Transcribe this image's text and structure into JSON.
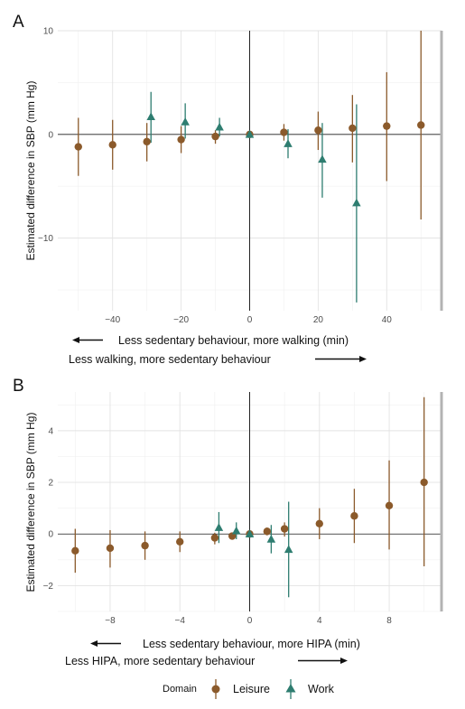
{
  "chart_data": [
    {
      "panel": "A",
      "type": "scatter",
      "ylabel": "Estimated difference in SBP (mm Hg)",
      "xlim": [
        -56,
        56
      ],
      "ylim": [
        -17,
        10
      ],
      "x_ticks": [
        -40,
        -20,
        0,
        20,
        40
      ],
      "y_ticks": [
        -10,
        0,
        10
      ],
      "x_tick_labels": [
        "−40",
        "−20",
        "0",
        "20",
        "40"
      ],
      "y_tick_labels": [
        "−10",
        "0",
        "10"
      ],
      "grid": true,
      "captions": [
        "Less sedentary behaviour, more walking (min)",
        "Less walking, more sedentary behaviour"
      ],
      "series": [
        {
          "name": "Leisure",
          "color": "#8B5A2B",
          "marker": "circle",
          "points": [
            {
              "x": -50,
              "y": -1.2,
              "lo": -4.0,
              "hi": 1.6
            },
            {
              "x": -40,
              "y": -1.0,
              "lo": -3.4,
              "hi": 1.4
            },
            {
              "x": -30,
              "y": -0.7,
              "lo": -2.6,
              "hi": 1.1
            },
            {
              "x": -20,
              "y": -0.5,
              "lo": -1.8,
              "hi": 0.8
            },
            {
              "x": -10,
              "y": -0.2,
              "lo": -0.9,
              "hi": 0.4
            },
            {
              "x": 0,
              "y": 0.0,
              "lo": 0.0,
              "hi": 0.0
            },
            {
              "x": 10,
              "y": 0.2,
              "lo": -0.6,
              "hi": 1.0
            },
            {
              "x": 20,
              "y": 0.4,
              "lo": -1.5,
              "hi": 2.2
            },
            {
              "x": 30,
              "y": 0.6,
              "lo": -2.7,
              "hi": 3.8
            },
            {
              "x": 40,
              "y": 0.8,
              "lo": -4.5,
              "hi": 6.0
            },
            {
              "x": 50,
              "y": 0.9,
              "lo": -8.2,
              "hi": 10.0
            }
          ]
        },
        {
          "name": "Work",
          "color": "#2E7D70",
          "marker": "triangle",
          "points": [
            {
              "x": -30,
              "y": 1.7,
              "lo": -0.8,
              "hi": 4.1
            },
            {
              "x": -20,
              "y": 1.2,
              "lo": -0.4,
              "hi": 3.0
            },
            {
              "x": -10,
              "y": 0.7,
              "lo": -0.2,
              "hi": 1.6
            },
            {
              "x": 0,
              "y": 0.0,
              "lo": 0.0,
              "hi": 0.0
            },
            {
              "x": 10,
              "y": -0.9,
              "lo": -2.3,
              "hi": 0.5
            },
            {
              "x": 20,
              "y": -2.4,
              "lo": -6.1,
              "hi": 1.1
            },
            {
              "x": 30,
              "y": -6.6,
              "lo": -16.2,
              "hi": 2.9
            }
          ]
        }
      ]
    },
    {
      "panel": "B",
      "type": "scatter",
      "ylabel": "Estimated difference in SBP (mm Hg)",
      "xlim": [
        -11,
        11
      ],
      "ylim": [
        -3.0,
        5.5
      ],
      "x_ticks": [
        -8,
        -4,
        0,
        4,
        8
      ],
      "y_ticks": [
        -2,
        0,
        2,
        4
      ],
      "x_tick_labels": [
        "−8",
        "−4",
        "0",
        "4",
        "8"
      ],
      "y_tick_labels": [
        "−2",
        "0",
        "2",
        "4"
      ],
      "grid": true,
      "captions": [
        "Less sedentary behaviour, more HIPA (min)",
        "Less HIPA, more sedentary behaviour"
      ],
      "series": [
        {
          "name": "Leisure",
          "color": "#8B5A2B",
          "marker": "circle",
          "points": [
            {
              "x": -10,
              "y": -0.65,
              "lo": -1.5,
              "hi": 0.2
            },
            {
              "x": -8,
              "y": -0.55,
              "lo": -1.3,
              "hi": 0.15
            },
            {
              "x": -6,
              "y": -0.45,
              "lo": -1.0,
              "hi": 0.1
            },
            {
              "x": -4,
              "y": -0.3,
              "lo": -0.7,
              "hi": 0.1
            },
            {
              "x": -2,
              "y": -0.15,
              "lo": -0.4,
              "hi": 0.05
            },
            {
              "x": -1,
              "y": -0.08,
              "lo": -0.2,
              "hi": 0.05
            },
            {
              "x": 0,
              "y": 0.0,
              "lo": 0.0,
              "hi": 0.0
            },
            {
              "x": 1,
              "y": 0.1,
              "lo": -0.05,
              "hi": 0.25
            },
            {
              "x": 2,
              "y": 0.2,
              "lo": -0.1,
              "hi": 0.45
            },
            {
              "x": 4,
              "y": 0.4,
              "lo": -0.2,
              "hi": 1.0
            },
            {
              "x": 6,
              "y": 0.7,
              "lo": -0.35,
              "hi": 1.75
            },
            {
              "x": 8,
              "y": 1.1,
              "lo": -0.6,
              "hi": 2.85
            },
            {
              "x": 10,
              "y": 2.0,
              "lo": -1.25,
              "hi": 5.3
            }
          ]
        },
        {
          "name": "Work",
          "color": "#2E7D70",
          "marker": "triangle",
          "points": [
            {
              "x": -2,
              "y": 0.25,
              "lo": -0.35,
              "hi": 0.85
            },
            {
              "x": -1,
              "y": 0.12,
              "lo": -0.2,
              "hi": 0.45
            },
            {
              "x": 0,
              "y": 0.0,
              "lo": 0.0,
              "hi": 0.0
            },
            {
              "x": 1,
              "y": -0.2,
              "lo": -0.75,
              "hi": 0.35
            },
            {
              "x": 2,
              "y": -0.6,
              "lo": -2.45,
              "hi": 1.25
            }
          ]
        }
      ]
    }
  ],
  "legend": {
    "title": "Domain",
    "position": "bottom",
    "items": [
      {
        "label": "Leisure",
        "color": "#8B5A2B",
        "marker": "circle"
      },
      {
        "label": "Work",
        "color": "#2E7D70",
        "marker": "triangle"
      }
    ]
  }
}
